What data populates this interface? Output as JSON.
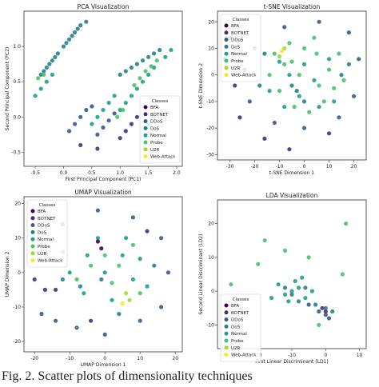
{
  "colors": {
    "BFA": "#440154",
    "BOTNET": "#46327e",
    "DDoS": "#365c8d",
    "DoS": "#277f8e",
    "Normal": "#1fa187",
    "Probe": "#4ac16d",
    "U2R": "#a0da39",
    "Web-Attack": "#fde725"
  },
  "legend_title": "Classes",
  "legend_entries": [
    "BFA",
    "BOTNET",
    "DDoS",
    "DoS",
    "Normal",
    "Probe",
    "U2R",
    "Web-Attack"
  ],
  "caption": "Fig. 2. Scatter plots of dimensionality techniques",
  "chart_data": [
    {
      "type": "scatter",
      "title": "PCA Visualization",
      "xlabel": "First Principal Component (PC1)",
      "ylabel": "Second Principal Component (PC2)",
      "xlim": [
        -0.7,
        2.1
      ],
      "ylim": [
        -0.7,
        1.5
      ],
      "xticks": [
        -0.5,
        0.0,
        0.5,
        1.0,
        1.5,
        2.0
      ],
      "xtick_labels": [
        "-0.5",
        "0.0",
        "0.5",
        "1.0",
        "1.5",
        "2.0"
      ],
      "yticks": [
        -0.5,
        0.0,
        0.5,
        1.0
      ],
      "ytick_labels": [
        "-0.5",
        "0.0",
        "0.5",
        "1.0"
      ],
      "legend": "center-right",
      "series": [
        {
          "name": "DoS",
          "points": [
            [
              -0.4,
              0.6
            ],
            [
              -0.3,
              0.7
            ],
            [
              -0.2,
              0.8
            ],
            [
              -0.1,
              0.9
            ],
            [
              0.0,
              1.0
            ],
            [
              0.1,
              1.1
            ],
            [
              0.2,
              1.2
            ],
            [
              0.3,
              1.3
            ],
            [
              0.4,
              1.35
            ],
            [
              -0.35,
              0.65
            ],
            [
              -0.25,
              0.75
            ],
            [
              -0.15,
              0.85
            ],
            [
              0.05,
              1.05
            ],
            [
              0.15,
              1.15
            ],
            [
              0.25,
              1.25
            ],
            [
              1.0,
              0.6
            ],
            [
              1.1,
              0.65
            ],
            [
              1.2,
              0.7
            ],
            [
              1.3,
              0.75
            ],
            [
              1.4,
              0.8
            ],
            [
              1.5,
              0.85
            ],
            [
              1.6,
              0.9
            ],
            [
              1.7,
              0.95
            ]
          ]
        },
        {
          "name": "Normal",
          "points": [
            [
              -0.5,
              0.3
            ],
            [
              -0.4,
              0.4
            ],
            [
              -0.3,
              0.5
            ],
            [
              -0.2,
              0.6
            ],
            [
              0.5,
              -0.1
            ],
            [
              0.6,
              0.0
            ],
            [
              0.7,
              0.1
            ],
            [
              0.8,
              0.2
            ],
            [
              0.9,
              0.3
            ],
            [
              1.0,
              0.1
            ],
            [
              1.1,
              0.2
            ],
            [
              1.2,
              0.3
            ],
            [
              1.3,
              0.4
            ],
            [
              1.4,
              0.5
            ],
            [
              1.5,
              0.6
            ],
            [
              1.6,
              0.7
            ],
            [
              1.8,
              0.85
            ],
            [
              1.9,
              0.95
            ]
          ]
        },
        {
          "name": "Probe",
          "points": [
            [
              -0.45,
              0.55
            ],
            [
              -0.35,
              0.6
            ],
            [
              1.25,
              0.45
            ],
            [
              1.35,
              0.55
            ],
            [
              1.45,
              0.65
            ],
            [
              1.55,
              0.72
            ],
            [
              1.65,
              0.8
            ],
            [
              0.95,
              0.0
            ],
            [
              1.05,
              0.1
            ]
          ]
        },
        {
          "name": "DDoS",
          "points": [
            [
              0.1,
              -0.2
            ],
            [
              0.2,
              -0.1
            ],
            [
              0.3,
              0.0
            ],
            [
              0.4,
              0.1
            ],
            [
              0.5,
              0.15
            ],
            [
              0.6,
              -0.25
            ],
            [
              0.7,
              -0.15
            ],
            [
              0.8,
              -0.05
            ],
            [
              0.9,
              0.05
            ],
            [
              1.5,
              -0.1
            ],
            [
              1.6,
              0.0
            ]
          ]
        },
        {
          "name": "BOTNET",
          "points": [
            [
              1.0,
              -0.3
            ],
            [
              1.1,
              -0.2
            ],
            [
              1.2,
              -0.1
            ],
            [
              1.3,
              0.0
            ],
            [
              0.3,
              -0.4
            ],
            [
              0.6,
              -0.45
            ]
          ]
        }
      ]
    },
    {
      "type": "scatter",
      "title": "t-SNE Visualization",
      "xlabel": "t-SNE Dimension 1",
      "ylabel": "t-SNE Dimension 2",
      "xlim": [
        -35,
        25
      ],
      "ylim": [
        -32,
        24
      ],
      "xticks": [
        -30,
        -20,
        -10,
        0,
        10,
        20
      ],
      "xtick_labels": [
        "-30",
        "-20",
        "-10",
        "0",
        "10",
        "20"
      ],
      "yticks": [
        -30,
        -20,
        -10,
        0,
        10,
        20
      ],
      "ytick_labels": [
        "-30",
        "-20",
        "-10",
        "0",
        "10",
        "20"
      ],
      "legend": "top-left",
      "series": [
        {
          "name": "Probe",
          "points": [
            [
              -5,
              5
            ],
            [
              0,
              10
            ],
            [
              5,
              8
            ],
            [
              10,
              2
            ],
            [
              12,
              -5
            ],
            [
              8,
              -10
            ],
            [
              2,
              -14
            ],
            [
              -4,
              -12
            ],
            [
              -10,
              -6
            ],
            [
              -14,
              0
            ],
            [
              -12,
              8
            ],
            [
              -6,
              12
            ],
            [
              4,
              14
            ],
            [
              14,
              8
            ],
            [
              16,
              -2
            ],
            [
              -2,
              0
            ],
            [
              6,
              -4
            ],
            [
              -8,
              4
            ]
          ]
        },
        {
          "name": "Normal",
          "points": [
            [
              -10,
              5
            ],
            [
              -6,
              0
            ],
            [
              0,
              4
            ],
            [
              4,
              -2
            ],
            [
              10,
              6
            ],
            [
              -2,
              -8
            ],
            [
              6,
              -12
            ],
            [
              12,
              -10
            ],
            [
              -14,
              -6
            ],
            [
              -8,
              -12
            ]
          ]
        },
        {
          "name": "DoS",
          "points": [
            [
              -5,
              -4
            ],
            [
              -3,
              -6
            ],
            [
              0,
              -10
            ],
            [
              15,
              0
            ],
            [
              18,
              4
            ],
            [
              -16,
              8
            ],
            [
              -18,
              -4
            ]
          ]
        },
        {
          "name": "DDoS",
          "points": [
            [
              -20,
              10
            ],
            [
              -24,
              2
            ],
            [
              -22,
              -10
            ],
            [
              -12,
              -18
            ],
            [
              0,
              -20
            ],
            [
              14,
              -16
            ],
            [
              20,
              -8
            ],
            [
              22,
              6
            ],
            [
              18,
              16
            ],
            [
              6,
              20
            ],
            [
              -8,
              18
            ]
          ]
        },
        {
          "name": "BOTNET",
          "points": [
            [
              -30,
              14
            ],
            [
              -28,
              -4
            ],
            [
              -26,
              -16
            ],
            [
              -16,
              -24
            ],
            [
              -6,
              -28
            ],
            [
              -32,
              6
            ],
            [
              10,
              -22
            ]
          ]
        },
        {
          "name": "U2R",
          "points": [
            [
              -8,
              10
            ],
            [
              -10,
              7
            ]
          ]
        },
        {
          "name": "Web-Attack",
          "points": [
            [
              -9,
              9
            ]
          ]
        }
      ]
    },
    {
      "type": "scatter",
      "title": "UMAP Visualization",
      "xlabel": "UMAP Dimension 1",
      "ylabel": "UMAP Dimension 2",
      "xlim": [
        -23,
        22
      ],
      "ylim": [
        -23,
        22
      ],
      "xticks": [
        -20,
        -10,
        0,
        10,
        20
      ],
      "xtick_labels": [
        "-20",
        "-10",
        "0",
        "10",
        "20"
      ],
      "yticks": [
        -20,
        -10,
        0,
        10,
        20
      ],
      "ytick_labels": [
        "-20",
        "-10",
        "0",
        "10",
        "20"
      ],
      "legend": "top-left",
      "series": [
        {
          "name": "Normal",
          "points": [
            [
              -10,
              0
            ],
            [
              -5,
              5
            ],
            [
              0,
              0
            ],
            [
              5,
              5
            ],
            [
              8,
              -2
            ],
            [
              -6,
              -6
            ],
            [
              2,
              -8
            ],
            [
              10,
              4
            ],
            [
              -12,
              6
            ],
            [
              -2,
              10
            ],
            [
              6,
              10
            ],
            [
              12,
              -4
            ]
          ]
        },
        {
          "name": "Probe",
          "points": [
            [
              0,
              5
            ],
            [
              4,
              2
            ],
            [
              -4,
              2
            ],
            [
              8,
              8
            ],
            [
              2,
              -3
            ],
            [
              -8,
              -2
            ],
            [
              10,
              -6
            ]
          ]
        },
        {
          "name": "DoS",
          "points": [
            [
              -12,
              -2
            ],
            [
              -7,
              -4
            ],
            [
              -1,
              -2
            ],
            [
              14,
              2
            ],
            [
              -16,
              4
            ],
            [
              4,
              -12
            ]
          ]
        },
        {
          "name": "DDoS",
          "points": [
            [
              -18,
              -12
            ],
            [
              -14,
              -14
            ],
            [
              -8,
              -16
            ],
            [
              0,
              -18
            ],
            [
              10,
              -14
            ],
            [
              16,
              -10
            ],
            [
              18,
              0
            ],
            [
              16,
              10
            ],
            [
              8,
              16
            ],
            [
              -2,
              18
            ],
            [
              -12,
              14
            ],
            [
              -18,
              8
            ]
          ]
        },
        {
          "name": "BOTNET",
          "points": [
            [
              -20,
              -2
            ],
            [
              -17,
              -5
            ],
            [
              -14,
              -5
            ],
            [
              12,
              12
            ],
            [
              -4,
              -14
            ]
          ]
        },
        {
          "name": "BFA",
          "points": [
            [
              -2,
              9
            ],
            [
              -1,
              7
            ]
          ]
        },
        {
          "name": "U2R",
          "points": [
            [
              6,
              -6
            ],
            [
              7,
              -8
            ]
          ]
        },
        {
          "name": "Web-Attack",
          "points": [
            [
              5,
              -9
            ]
          ]
        }
      ]
    },
    {
      "type": "scatter",
      "title": "LDA Visualization",
      "xlabel": "First Linear Discriminant (LD1)",
      "ylabel": "Second Linear Discriminant (LD2)",
      "xlim": [
        -32,
        12
      ],
      "ylim": [
        -17,
        27
      ],
      "xticks": [
        -30,
        -20,
        -10,
        0,
        10
      ],
      "xtick_labels": [
        "-30",
        "-20",
        "-10",
        "0",
        "10"
      ],
      "yticks": [
        -10,
        0,
        10,
        20
      ],
      "ytick_labels": [
        "-10",
        "0",
        "10",
        "20"
      ],
      "legend": "bottom-left",
      "series": [
        {
          "name": "Normal",
          "points": [
            [
              -10,
              0
            ],
            [
              -8,
              1
            ],
            [
              -12,
              -1
            ],
            [
              -6,
              -2
            ],
            [
              -14,
              2
            ],
            [
              -9,
              3
            ],
            [
              -11,
              -3
            ],
            [
              -4,
              0
            ],
            [
              -16,
              -2
            ],
            [
              -7,
              4
            ]
          ]
        },
        {
          "name": "Probe",
          "points": [
            [
              -20,
              8
            ],
            [
              -5,
              10
            ],
            [
              -25,
              -5
            ],
            [
              5,
              5
            ],
            [
              -18,
              15
            ],
            [
              -2,
              -10
            ],
            [
              6,
              20
            ],
            [
              -28,
              2
            ],
            [
              -12,
              12
            ]
          ]
        },
        {
          "name": "DoS",
          "points": [
            [
              -10,
              -1
            ],
            [
              -8,
              -3
            ],
            [
              -12,
              1
            ],
            [
              -6,
              1
            ],
            [
              -3,
              -4
            ],
            [
              0,
              -5
            ],
            [
              2,
              -6
            ]
          ]
        },
        {
          "name": "DDoS",
          "points": [
            [
              -2,
              -6
            ],
            [
              0,
              -7
            ],
            [
              1,
              -8
            ],
            [
              -5,
              -4
            ]
          ]
        },
        {
          "name": "BOTNET",
          "points": [
            [
              -1,
              -5
            ],
            [
              0,
              -6
            ]
          ]
        }
      ]
    }
  ]
}
